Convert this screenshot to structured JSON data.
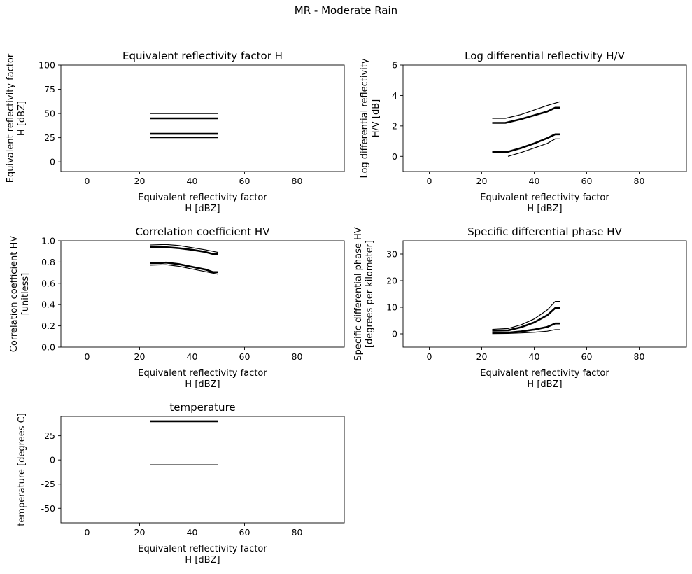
{
  "figure": {
    "title": "MR - Moderate Rain"
  },
  "chart_data": [
    {
      "type": "line",
      "title": "Equivalent reflectivity factor H",
      "xlabel": [
        "Equivalent reflectivity factor",
        "H [dBZ]"
      ],
      "ylabel": [
        "Equivalent reflectivity factor",
        "H [dBZ]"
      ],
      "xlim": [
        -10,
        98
      ],
      "ylim": [
        -10,
        100
      ],
      "xticks": [
        0,
        20,
        40,
        60,
        80
      ],
      "yticks": [
        0,
        25,
        50,
        75,
        100
      ],
      "grid": false,
      "series": [
        {
          "weight": "thick",
          "x": [
            24,
            50
          ],
          "y": [
            45,
            45
          ]
        },
        {
          "weight": "thick",
          "x": [
            24,
            50
          ],
          "y": [
            29,
            29
          ]
        },
        {
          "weight": "thin",
          "x": [
            24,
            50
          ],
          "y": [
            50,
            50
          ]
        },
        {
          "weight": "thin",
          "x": [
            24,
            50
          ],
          "y": [
            25,
            25
          ]
        }
      ]
    },
    {
      "type": "line",
      "title": "Log differential reflectivity H/V",
      "xlabel": [
        "Equivalent reflectivity factor",
        "H [dBZ]"
      ],
      "ylabel": [
        "Log differential reflectivity",
        "H/V [dB]"
      ],
      "xlim": [
        -10,
        98
      ],
      "ylim": [
        -1,
        6
      ],
      "xticks": [
        0,
        20,
        40,
        60,
        80
      ],
      "yticks": [
        0,
        2,
        4,
        6
      ],
      "grid": false,
      "series": [
        {
          "weight": "thick",
          "x": [
            24,
            29,
            35,
            40,
            45,
            48,
            50
          ],
          "y": [
            2.2,
            2.2,
            2.45,
            2.7,
            2.95,
            3.2,
            3.2
          ]
        },
        {
          "weight": "thick",
          "x": [
            24,
            30,
            35,
            40,
            45,
            48,
            50
          ],
          "y": [
            0.3,
            0.3,
            0.55,
            0.85,
            1.2,
            1.45,
            1.45
          ]
        },
        {
          "weight": "thin",
          "x": [
            24,
            29,
            35,
            40,
            45,
            50
          ],
          "y": [
            2.5,
            2.5,
            2.75,
            3.05,
            3.35,
            3.6
          ]
        },
        {
          "weight": "thin",
          "x": [
            30,
            35,
            40,
            45,
            48,
            50
          ],
          "y": [
            0.0,
            0.25,
            0.55,
            0.85,
            1.15,
            1.15
          ]
        }
      ]
    },
    {
      "type": "line",
      "title": "Correlation coefficient HV",
      "xlabel": [
        "Equivalent reflectivity factor",
        "H [dBZ]"
      ],
      "ylabel": [
        "Correlation coefficient HV",
        "[unitless]"
      ],
      "xlim": [
        -10,
        98
      ],
      "ylim": [
        0.0,
        1.0
      ],
      "xticks": [
        0,
        20,
        40,
        60,
        80
      ],
      "yticks": [
        0.0,
        0.2,
        0.4,
        0.6,
        0.8,
        1.0
      ],
      "grid": false,
      "series": [
        {
          "weight": "thick",
          "x": [
            24,
            30,
            35,
            40,
            45,
            48,
            50
          ],
          "y": [
            0.94,
            0.94,
            0.93,
            0.915,
            0.895,
            0.875,
            0.875
          ]
        },
        {
          "weight": "thick",
          "x": [
            24,
            28,
            30,
            35,
            40,
            45,
            48,
            50
          ],
          "y": [
            0.79,
            0.79,
            0.795,
            0.78,
            0.755,
            0.73,
            0.705,
            0.705
          ]
        },
        {
          "weight": "thin",
          "x": [
            24,
            30,
            35,
            40,
            45,
            50
          ],
          "y": [
            0.96,
            0.965,
            0.955,
            0.935,
            0.915,
            0.89
          ]
        },
        {
          "weight": "thin",
          "x": [
            24,
            30,
            35,
            40,
            45,
            50
          ],
          "y": [
            0.77,
            0.775,
            0.76,
            0.735,
            0.71,
            0.685
          ]
        }
      ]
    },
    {
      "type": "line",
      "title": "Specific differential phase HV",
      "xlabel": [
        "Equivalent reflectivity factor",
        "H [dBZ]"
      ],
      "ylabel": [
        "Specific differential phase HV",
        "[degrees per kilometer]"
      ],
      "xlim": [
        -10,
        98
      ],
      "ylim": [
        -5,
        35
      ],
      "xticks": [
        0,
        20,
        40,
        60,
        80
      ],
      "yticks": [
        0,
        10,
        20,
        30
      ],
      "grid": false,
      "series": [
        {
          "weight": "thick",
          "x": [
            24,
            30,
            35,
            40,
            45,
            48,
            50
          ],
          "y": [
            1.2,
            1.3,
            2.5,
            4.3,
            7.0,
            9.7,
            9.7
          ]
        },
        {
          "weight": "thick",
          "x": [
            24,
            30,
            35,
            40,
            45,
            48,
            50
          ],
          "y": [
            0.4,
            0.45,
            0.9,
            1.6,
            2.6,
            3.9,
            3.9
          ]
        },
        {
          "weight": "thin",
          "x": [
            24,
            30,
            35,
            40,
            45,
            48,
            50
          ],
          "y": [
            1.7,
            2.0,
            3.4,
            5.6,
            9.0,
            12.2,
            12.2
          ]
        },
        {
          "weight": "thin",
          "x": [
            24,
            30,
            35,
            40,
            45,
            48,
            50
          ],
          "y": [
            0.1,
            0.15,
            0.35,
            0.6,
            1.0,
            1.6,
            1.6
          ]
        }
      ]
    },
    {
      "type": "line",
      "title": "temperature",
      "xlabel": [
        "Equivalent reflectivity factor",
        "H [dBZ]"
      ],
      "ylabel": [
        "temperature [degrees C]"
      ],
      "xlim": [
        -10,
        98
      ],
      "ylim": [
        -65,
        45
      ],
      "xticks": [
        0,
        20,
        40,
        60,
        80
      ],
      "yticks": [
        -50,
        -25,
        0,
        25
      ],
      "grid": false,
      "series": [
        {
          "weight": "thick",
          "x": [
            24,
            50
          ],
          "y": [
            40,
            40
          ]
        },
        {
          "weight": "thin",
          "x": [
            24,
            50
          ],
          "y": [
            -5,
            -5
          ]
        }
      ]
    }
  ]
}
